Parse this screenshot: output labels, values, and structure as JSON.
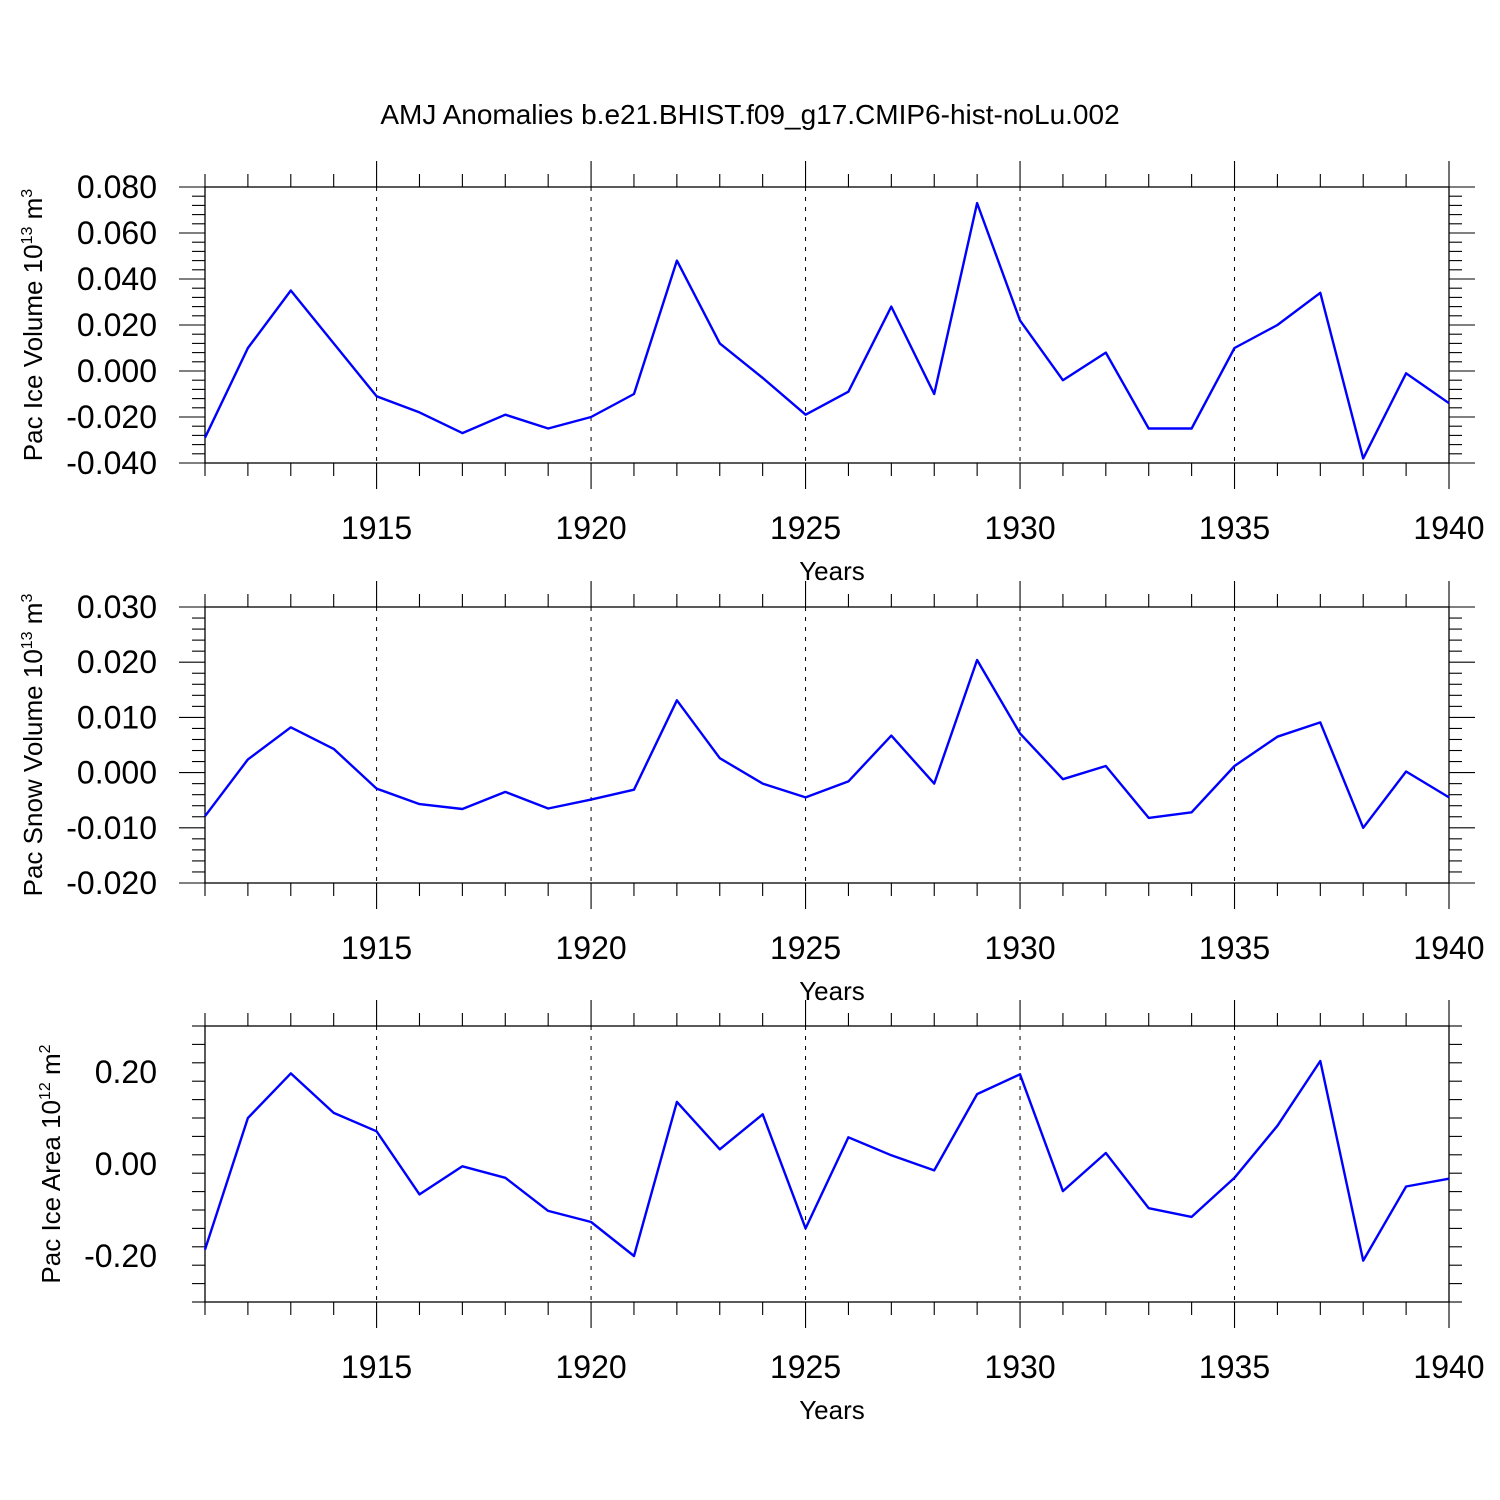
{
  "title": "AMJ Anomalies b.e21.BHIST.f09_g17.CMIP6-hist-noLu.002",
  "colors": {
    "line": "#0000ff",
    "axis": "#000000"
  },
  "chart_data": [
    {
      "type": "line",
      "ylabel": {
        "base": "Pac Ice Volume 10",
        "exp": "13",
        "unit": " m",
        "unit_exp": "3"
      },
      "xlabel": "Years",
      "xlim": [
        1911,
        1940
      ],
      "ylim": [
        -0.04,
        0.08
      ],
      "yticks": [
        -0.04,
        -0.02,
        0.0,
        0.02,
        0.04,
        0.06,
        0.08
      ],
      "ytick_labels": [
        "-0.040",
        "-0.020",
        "0.000",
        "0.020",
        "0.040",
        "0.060",
        "0.080"
      ],
      "xticks": [
        1915,
        1920,
        1925,
        1930,
        1935,
        1940
      ],
      "xtick_labels": [
        "1915",
        "1920",
        "1925",
        "1930",
        "1935",
        "1940"
      ],
      "grid": "vertical dashed at major x ticks",
      "x": [
        1911,
        1912,
        1913,
        1914,
        1915,
        1916,
        1917,
        1918,
        1919,
        1920,
        1921,
        1922,
        1923,
        1924,
        1925,
        1926,
        1927,
        1928,
        1929,
        1930,
        1931,
        1932,
        1933,
        1934,
        1935,
        1936,
        1937,
        1938,
        1939,
        1940
      ],
      "values": [
        -0.029,
        0.01,
        0.035,
        0.012,
        -0.011,
        -0.018,
        -0.027,
        -0.019,
        -0.025,
        -0.02,
        -0.01,
        0.048,
        0.012,
        -0.003,
        -0.019,
        -0.009,
        0.028,
        -0.01,
        0.073,
        0.022,
        -0.004,
        0.008,
        -0.025,
        -0.025,
        0.01,
        0.02,
        0.034,
        -0.038,
        -0.001,
        -0.014
      ]
    },
    {
      "type": "line",
      "ylabel": {
        "base": "Pac Snow Volume 10",
        "exp": "13",
        "unit": " m",
        "unit_exp": "3"
      },
      "xlabel": "Years",
      "xlim": [
        1911,
        1940
      ],
      "ylim": [
        -0.02,
        0.03
      ],
      "yticks": [
        -0.02,
        -0.01,
        0.0,
        0.01,
        0.02,
        0.03
      ],
      "ytick_labels": [
        "-0.020",
        "-0.010",
        "0.000",
        "0.010",
        "0.020",
        "0.030"
      ],
      "xticks": [
        1915,
        1920,
        1925,
        1930,
        1935,
        1940
      ],
      "xtick_labels": [
        "1915",
        "1920",
        "1925",
        "1930",
        "1935",
        "1940"
      ],
      "grid": "vertical dashed at major x ticks",
      "x": [
        1911,
        1912,
        1913,
        1914,
        1915,
        1916,
        1917,
        1918,
        1919,
        1920,
        1921,
        1922,
        1923,
        1924,
        1925,
        1926,
        1927,
        1928,
        1929,
        1930,
        1931,
        1932,
        1933,
        1934,
        1935,
        1936,
        1937,
        1938,
        1939,
        1940
      ],
      "values": [
        -0.0079,
        0.0024,
        0.0082,
        0.0043,
        -0.0029,
        -0.0057,
        -0.0066,
        -0.0035,
        -0.0065,
        -0.0049,
        -0.0031,
        0.0131,
        0.0026,
        -0.002,
        -0.0045,
        -0.0016,
        0.0067,
        -0.002,
        0.0204,
        0.0071,
        -0.0012,
        0.0012,
        -0.0082,
        -0.0072,
        0.0012,
        0.0065,
        0.0091,
        -0.01,
        0.0002,
        -0.0045
      ]
    },
    {
      "type": "line",
      "ylabel": {
        "base": "Pac Ice Area 10",
        "exp": "12",
        "unit": " m",
        "unit_exp": "2"
      },
      "xlabel": "Years",
      "xlim": [
        1911,
        1940
      ],
      "ylim": [
        -0.3,
        0.3
      ],
      "yticks": [
        -0.2,
        0.0,
        0.2
      ],
      "ytick_labels": [
        "-0.20",
        "0.00",
        "0.20"
      ],
      "xticks": [
        1915,
        1920,
        1925,
        1930,
        1935,
        1940
      ],
      "xtick_labels": [
        "1915",
        "1920",
        "1925",
        "1930",
        "1935",
        "1940"
      ],
      "grid": "vertical dashed at major x ticks",
      "x": [
        1911,
        1912,
        1913,
        1914,
        1915,
        1916,
        1917,
        1918,
        1919,
        1920,
        1921,
        1922,
        1923,
        1924,
        1925,
        1926,
        1927,
        1928,
        1929,
        1930,
        1931,
        1932,
        1933,
        1934,
        1935,
        1936,
        1937,
        1938,
        1939,
        1940
      ],
      "values": [
        -0.186,
        0.1,
        0.197,
        0.111,
        0.071,
        -0.066,
        -0.005,
        -0.03,
        -0.102,
        -0.126,
        -0.2,
        0.135,
        0.032,
        0.108,
        -0.14,
        0.058,
        0.019,
        -0.014,
        0.152,
        0.195,
        -0.059,
        0.024,
        -0.096,
        -0.115,
        -0.03,
        0.083,
        0.224,
        -0.21,
        -0.049,
        -0.032
      ]
    }
  ]
}
